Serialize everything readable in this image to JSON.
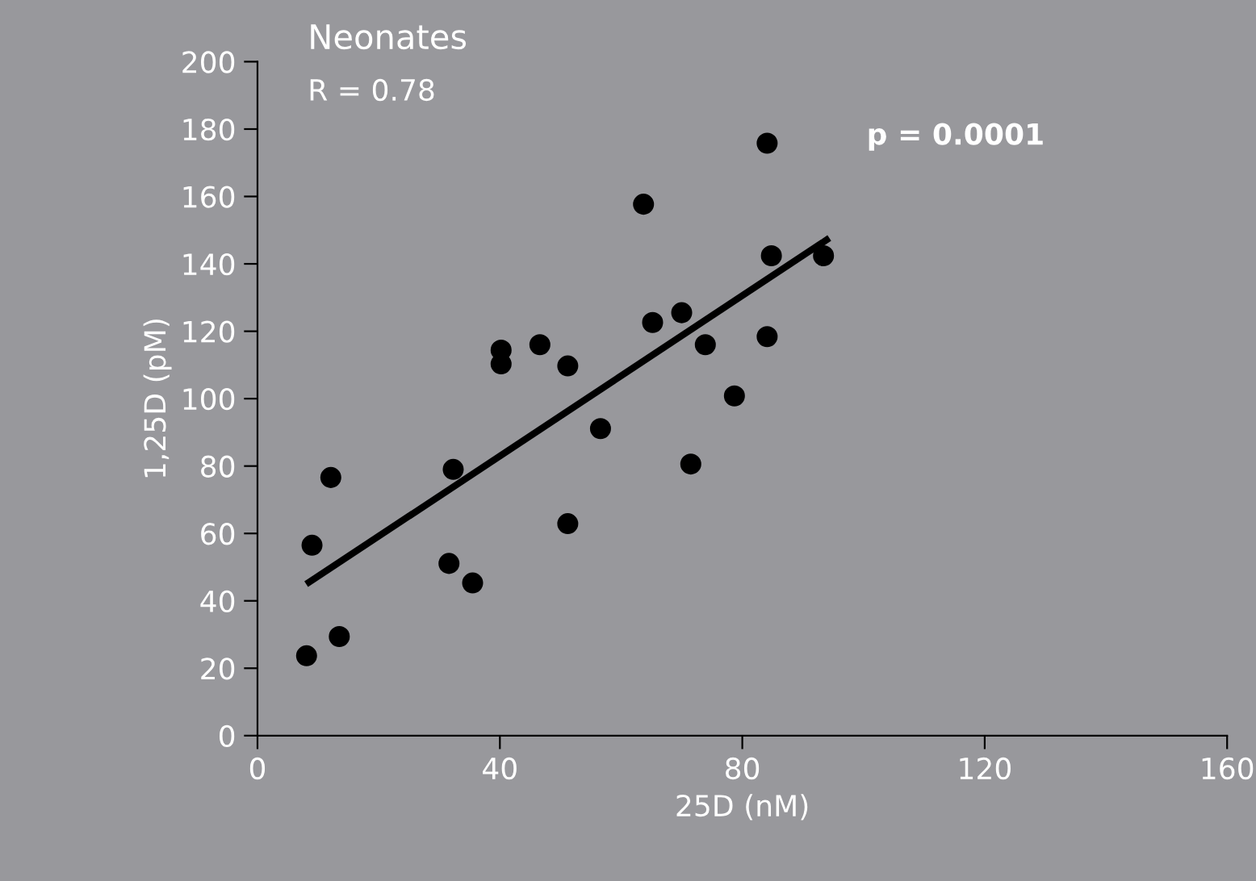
{
  "chart_data": {
    "type": "scatter",
    "title": "Neonates",
    "xlabel": "25D (nM)",
    "ylabel": "1,25D (pM)",
    "annotations": [
      "R = 0.78",
      "p = 0.0001"
    ],
    "series": [
      {
        "color": "#000000",
        "marker": "circle",
        "x": [
          8.1,
          9.0,
          12.1,
          13.5,
          31.6,
          32.3,
          35.5,
          40.2,
          40.2,
          46.6,
          51.2,
          51.2,
          56.6,
          63.7,
          65.2,
          70.0,
          71.5,
          73.9,
          78.7,
          84.1,
          84.1,
          84.8,
          93.4
        ],
        "values": [
          23.7,
          56.5,
          76.6,
          29.4,
          51.1,
          79.0,
          45.3,
          114.4,
          110.3,
          116.0,
          109.7,
          62.9,
          91.1,
          157.7,
          122.6,
          125.5,
          80.6,
          116.0,
          100.8,
          118.4,
          175.8,
          142.4,
          142.4
        ]
      },
      {
        "type": "line",
        "color": "#000000",
        "marker": "none",
        "x": [
          8.5,
          93.9
        ],
        "values": [
          45.5,
          147.1
        ]
      }
    ],
    "xlim": [
      0,
      160
    ],
    "xticks": [
      0,
      40,
      80,
      120,
      160
    ],
    "ylim": [
      0,
      200
    ],
    "yticks": [
      0,
      20,
      40,
      60,
      80,
      100,
      120,
      140,
      160,
      180,
      200
    ],
    "grid": false,
    "legend": false
  }
}
